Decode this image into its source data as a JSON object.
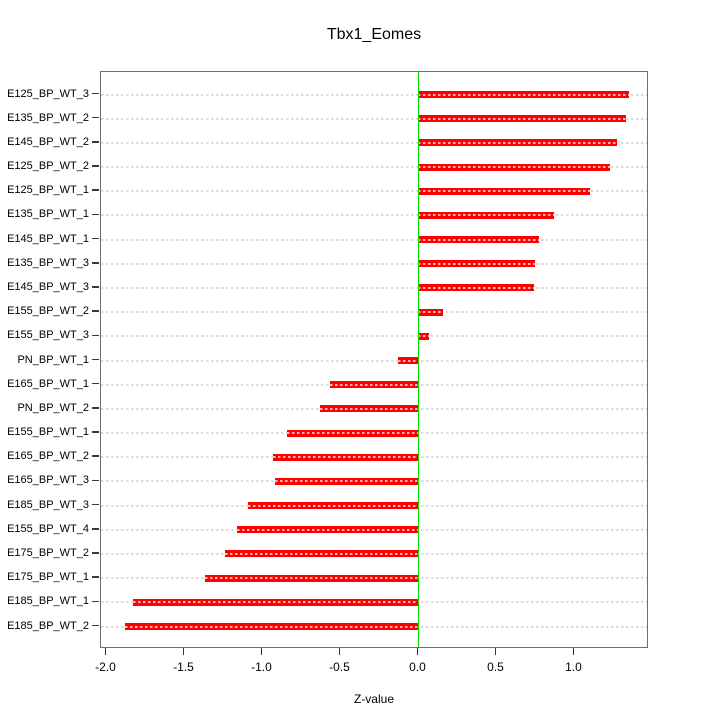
{
  "chart_data": {
    "type": "bar",
    "orientation": "horizontal",
    "title": "Tbx1_Eomes",
    "xlabel": "Z-value",
    "categories": [
      "E125_BP_WT_3",
      "E135_BP_WT_2",
      "E145_BP_WT_2",
      "E125_BP_WT_2",
      "E125_BP_WT_1",
      "E135_BP_WT_1",
      "E145_BP_WT_1",
      "E135_BP_WT_3",
      "E145_BP_WT_3",
      "E155_BP_WT_2",
      "E155_BP_WT_3",
      "PN_BP_WT_1",
      "E165_BP_WT_1",
      "PN_BP_WT_2",
      "E155_BP_WT_1",
      "E165_BP_WT_2",
      "E165_BP_WT_3",
      "E185_BP_WT_3",
      "E155_BP_WT_4",
      "E175_BP_WT_2",
      "E175_BP_WT_1",
      "E185_BP_WT_1",
      "E185_BP_WT_2"
    ],
    "values": [
      1.35,
      1.33,
      1.27,
      1.23,
      1.1,
      0.87,
      0.77,
      0.75,
      0.74,
      0.16,
      0.07,
      -0.13,
      -0.57,
      -0.63,
      -0.84,
      -0.93,
      -0.92,
      -1.09,
      -1.16,
      -1.24,
      -1.37,
      -1.83,
      -1.88
    ],
    "x_ticks": {
      "labels": [
        "-2.0",
        "-1.5",
        "-1.0",
        "-0.5",
        "0.0",
        "0.5",
        "1.0"
      ],
      "values": [
        -2.0,
        -1.5,
        -1.0,
        -0.5,
        0.0,
        0.5,
        1.0
      ]
    },
    "xlim": [
      -2.035,
      1.478
    ],
    "zero_reference_line": 0.0,
    "grid": "horizontal-dashed",
    "legend": "none",
    "colors": {
      "bar": "#ff0000",
      "zero_line": "#00dd00",
      "grid": "#dcdcdc",
      "box_border": "#6e6e6e",
      "tick": "#3a3a3a",
      "text": "#000000",
      "background": "#ffffff"
    }
  }
}
